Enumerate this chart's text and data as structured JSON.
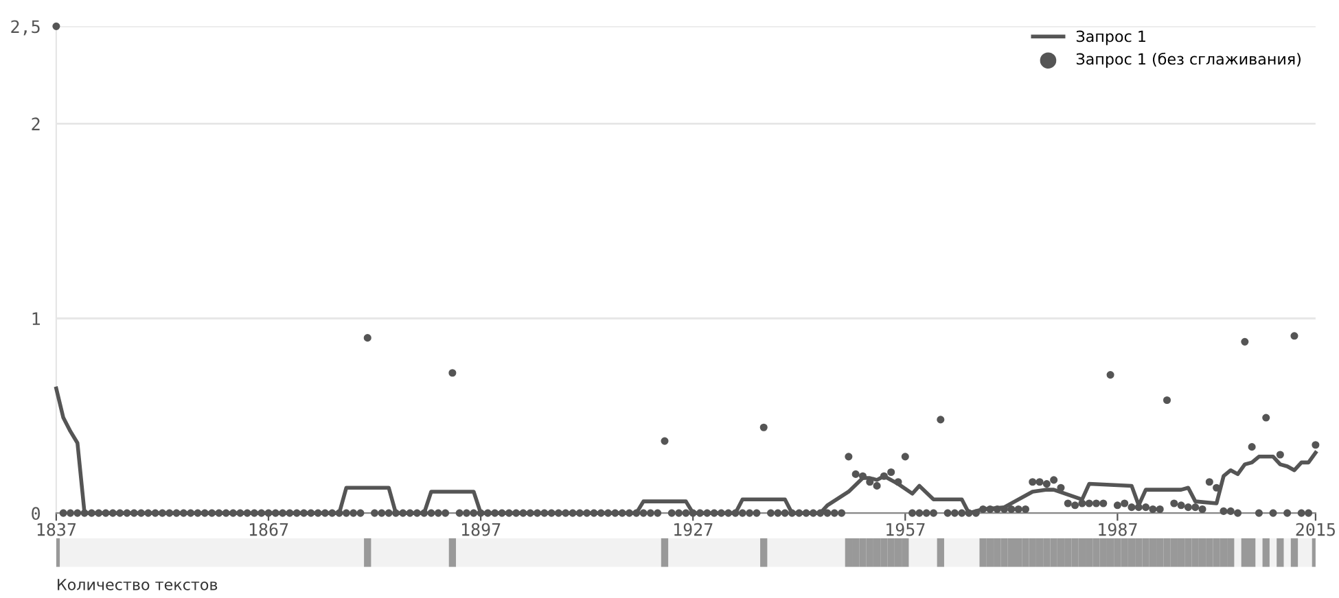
{
  "chart_data": {
    "type": "scatter",
    "xlim": [
      1837,
      2015
    ],
    "xticks": [
      1837,
      1867,
      1897,
      1927,
      1957,
      1987,
      2015
    ],
    "ylim": [
      0,
      2.5
    ],
    "yticks": [
      0,
      1,
      2,
      {
        "value": 2.5,
        "label": "2,5"
      }
    ],
    "grid": "y",
    "legend": "top right",
    "marker": "circle",
    "annotations": [
      "Количество текстов"
    ],
    "x": [
      1837,
      1838,
      1839,
      1840,
      1841,
      1842,
      1843,
      1844,
      1845,
      1846,
      1847,
      1848,
      1849,
      1850,
      1851,
      1852,
      1853,
      1854,
      1855,
      1856,
      1857,
      1858,
      1859,
      1860,
      1861,
      1862,
      1863,
      1864,
      1865,
      1866,
      1867,
      1868,
      1869,
      1870,
      1871,
      1872,
      1873,
      1874,
      1875,
      1876,
      1877,
      1878,
      1879,
      1880,
      1881,
      1882,
      1883,
      1884,
      1885,
      1886,
      1887,
      1888,
      1889,
      1890,
      1891,
      1892,
      1893,
      1894,
      1895,
      1896,
      1897,
      1898,
      1899,
      1900,
      1901,
      1902,
      1903,
      1904,
      1905,
      1906,
      1907,
      1908,
      1909,
      1910,
      1911,
      1912,
      1913,
      1914,
      1915,
      1916,
      1917,
      1918,
      1919,
      1920,
      1921,
      1922,
      1923,
      1924,
      1925,
      1926,
      1927,
      1928,
      1929,
      1930,
      1931,
      1932,
      1933,
      1934,
      1935,
      1936,
      1937,
      1938,
      1939,
      1940,
      1941,
      1942,
      1943,
      1944,
      1945,
      1946,
      1947,
      1948,
      1949,
      1950,
      1951,
      1952,
      1953,
      1954,
      1955,
      1956,
      1957,
      1958,
      1959,
      1960,
      1961,
      1962,
      1963,
      1964,
      1965,
      1966,
      1967,
      1968,
      1969,
      1970,
      1971,
      1972,
      1973,
      1974,
      1975,
      1976,
      1977,
      1978,
      1979,
      1980,
      1981,
      1982,
      1983,
      1984,
      1985,
      1986,
      1987,
      1988,
      1989,
      1990,
      1991,
      1992,
      1993,
      1994,
      1995,
      1996,
      1997,
      1998,
      1999,
      2000,
      2001,
      2002,
      2003,
      2004,
      2005,
      2006,
      2007,
      2008,
      2009,
      2010,
      2011,
      2012,
      2013,
      2014,
      2015
    ],
    "series": [
      {
        "name": "Запрос 1",
        "type": "line",
        "color": "#555555",
        "marker": "none",
        "x": [
          1837,
          1838,
          1839,
          1840,
          1841,
          1877,
          1878,
          1884,
          1885,
          1889,
          1890,
          1896,
          1897,
          1919,
          1920,
          1926,
          1927,
          1933,
          1934,
          1940,
          1941,
          1945,
          1946,
          1949,
          1951,
          1952,
          1953,
          1954,
          1956,
          1958,
          1959,
          1961,
          1965,
          1966,
          1968,
          1971,
          1975,
          1977,
          1978,
          1982,
          1983,
          1989,
          1990,
          1991,
          1996,
          1997,
          1998,
          2001,
          2002,
          2003,
          2004,
          2005,
          2006,
          2007,
          2009,
          2010,
          2011,
          2012,
          2013,
          2014,
          2015
        ],
        "values": [
          0.64,
          0.49,
          0.42,
          0.36,
          0,
          0,
          0.13,
          0.13,
          0,
          0,
          0.11,
          0.11,
          0,
          0,
          0.06,
          0.06,
          0,
          0,
          0.07,
          0.07,
          0,
          0,
          0.04,
          0.11,
          0.18,
          0.18,
          0.17,
          0.19,
          0.15,
          0.1,
          0.14,
          0.07,
          0.07,
          0,
          0.02,
          0.03,
          0.11,
          0.12,
          0.12,
          0.07,
          0.15,
          0.14,
          0.04,
          0.12,
          0.12,
          0.13,
          0.06,
          0.05,
          0.19,
          0.22,
          0.2,
          0.25,
          0.26,
          0.29,
          0.29,
          0.25,
          0.24,
          0.22,
          0.26,
          0.26,
          0.31
        ]
      },
      {
        "name": "Запрос 1 (без сглаживания)",
        "color": "#555555",
        "values": [
          2.5,
          0,
          0,
          0,
          0,
          0,
          0,
          0,
          0,
          0,
          0,
          0,
          0,
          0,
          0,
          0,
          0,
          0,
          0,
          0,
          0,
          0,
          0,
          0,
          0,
          0,
          0,
          0,
          0,
          0,
          0,
          0,
          0,
          0,
          0,
          0,
          0,
          0,
          0,
          0,
          0,
          0,
          0,
          0,
          0.9,
          0,
          0,
          0,
          0,
          0,
          0,
          0,
          0,
          0,
          0,
          0,
          0.72,
          0,
          0,
          0,
          0,
          0,
          0,
          0,
          0,
          0,
          0,
          0,
          0,
          0,
          0,
          0,
          0,
          0,
          0,
          0,
          0,
          0,
          0,
          0,
          0,
          0,
          0,
          0,
          0,
          0,
          0.37,
          0,
          0,
          0,
          0,
          0,
          0,
          0,
          0,
          0,
          0,
          0,
          0,
          0,
          0.44,
          0,
          0,
          0,
          0,
          0,
          0,
          0,
          0,
          0,
          0,
          0,
          0.29,
          0.2,
          0.19,
          0.16,
          0.14,
          0.19,
          0.21,
          0.16,
          0.29,
          0,
          0,
          0,
          0,
          0.48,
          0,
          0,
          0,
          0,
          0,
          0.02,
          0.02,
          0.02,
          0.02,
          0.02,
          0.02,
          0.02,
          0.16,
          0.16,
          0.15,
          0.17,
          0.13,
          0.05,
          0.04,
          0.05,
          0.05,
          0.05,
          0.05,
          0.71,
          0.04,
          0.05,
          0.03,
          0.03,
          0.03,
          0.02,
          0.02,
          0.58,
          0.05,
          0.04,
          0.03,
          0.03,
          0.02,
          0.16,
          0.13,
          0.01,
          0.01,
          0,
          0.88,
          0.34,
          0,
          0.49,
          0,
          0.3,
          0,
          0.91,
          0,
          0,
          0.35
        ]
      }
    ]
  }
}
